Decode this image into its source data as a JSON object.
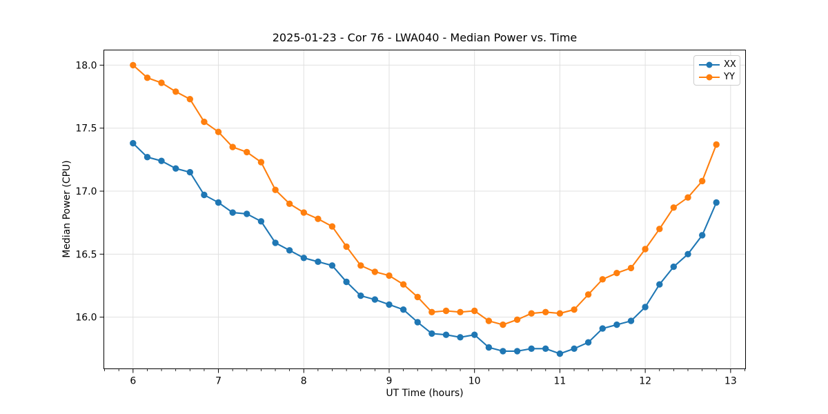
{
  "chart_data": {
    "type": "line",
    "title": "2025-01-23 - Cor 76 - LWA040 - Median Power vs. Time",
    "xlabel": "UT Time (hours)",
    "ylabel": "Median Power (CPU)",
    "xlim": [
      5.658,
      13.175
    ],
    "ylim": [
      15.59,
      18.12
    ],
    "xticks": [
      6,
      7,
      8,
      9,
      10,
      11,
      12,
      13
    ],
    "xtick_labels": [
      "6",
      "7",
      "8",
      "9",
      "10",
      "11",
      "12",
      "13"
    ],
    "yticks": [
      16.0,
      16.5,
      17.0,
      17.5,
      18.0
    ],
    "ytick_labels": [
      "16.0",
      "16.5",
      "17.0",
      "17.5",
      "18.0"
    ],
    "x_minor_step_hours": 0.1667,
    "grid": true,
    "legend_position": "upper right",
    "x": [
      6.0,
      6.167,
      6.333,
      6.5,
      6.667,
      6.833,
      7.0,
      7.167,
      7.333,
      7.5,
      7.667,
      7.833,
      8.0,
      8.167,
      8.333,
      8.5,
      8.667,
      8.833,
      9.0,
      9.167,
      9.333,
      9.5,
      9.667,
      9.833,
      10.0,
      10.167,
      10.333,
      10.5,
      10.667,
      10.833,
      11.0,
      11.167,
      11.333,
      11.5,
      11.667,
      11.833,
      12.0,
      12.167,
      12.333,
      12.5,
      12.667,
      12.833
    ],
    "series": [
      {
        "name": "XX",
        "color": "#1f77b4",
        "values": [
          17.38,
          17.27,
          17.24,
          17.18,
          17.15,
          16.97,
          16.91,
          16.83,
          16.82,
          16.76,
          16.59,
          16.53,
          16.47,
          16.44,
          16.41,
          16.28,
          16.17,
          16.14,
          16.1,
          16.06,
          15.96,
          15.87,
          15.86,
          15.84,
          15.86,
          15.76,
          15.73,
          15.73,
          15.75,
          15.75,
          15.71,
          15.75,
          15.8,
          15.91,
          15.94,
          15.97,
          16.08,
          16.26,
          16.4,
          16.5,
          16.65,
          16.91
        ]
      },
      {
        "name": "YY",
        "color": "#ff7f0e",
        "values": [
          18.0,
          17.9,
          17.86,
          17.79,
          17.73,
          17.55,
          17.47,
          17.35,
          17.31,
          17.23,
          17.01,
          16.9,
          16.83,
          16.78,
          16.72,
          16.56,
          16.41,
          16.36,
          16.33,
          16.26,
          16.16,
          16.04,
          16.05,
          16.04,
          16.05,
          15.97,
          15.94,
          15.98,
          16.03,
          16.04,
          16.03,
          16.06,
          16.18,
          16.3,
          16.35,
          16.39,
          16.54,
          16.7,
          16.87,
          16.95,
          17.08,
          17.37
        ]
      }
    ],
    "style": {
      "grid_color": "#e0e0e0",
      "spine_color": "#000000",
      "background": "#ffffff"
    }
  }
}
